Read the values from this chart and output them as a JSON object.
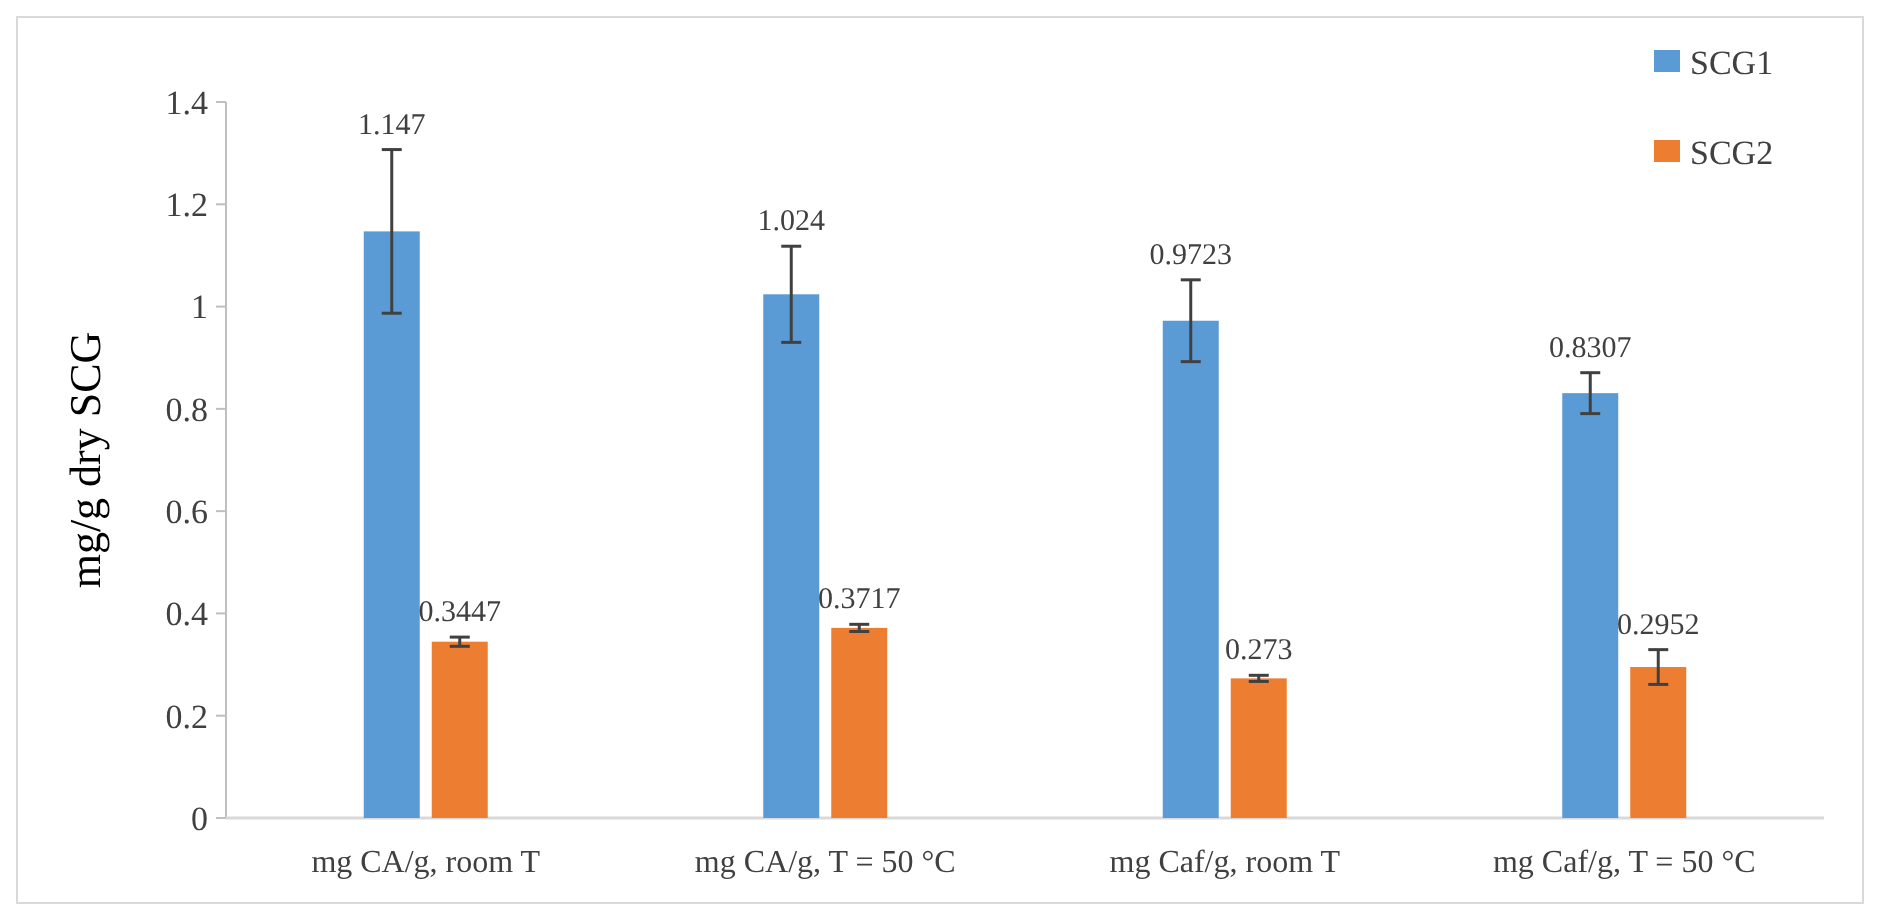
{
  "chart_data": {
    "type": "bar",
    "ylabel": "mg/g dry SCG",
    "categories": [
      "mg CA/g, room T",
      "mg CA/g, T = 50 °C",
      "mg Caf/g, room T",
      "mg Caf/g, T = 50 °C"
    ],
    "series": [
      {
        "name": "SCG1",
        "color": "#5b9bd5",
        "values": [
          1.147,
          1.024,
          0.9723,
          0.8307
        ],
        "errors": [
          0.16,
          0.094,
          0.08,
          0.04
        ]
      },
      {
        "name": "SCG2",
        "color": "#ed7d31",
        "values": [
          0.3447,
          0.3717,
          0.273,
          0.2952
        ],
        "errors": [
          0.009,
          0.007,
          0.006,
          0.034
        ]
      }
    ],
    "data_labels": true,
    "ylim": [
      0,
      1.4
    ],
    "yticks": [
      0,
      {
        "value": 0.2,
        "label": "0.2"
      },
      {
        "value": 0.4,
        "label": "0.4"
      },
      {
        "value": 0.6,
        "label": "0.6"
      },
      {
        "value": 0.8,
        "label": "0.8"
      },
      1,
      {
        "value": 1.2,
        "label": "1.2"
      },
      {
        "value": 1.4,
        "label": "1.4"
      }
    ],
    "grid": false,
    "legend": "top right"
  }
}
